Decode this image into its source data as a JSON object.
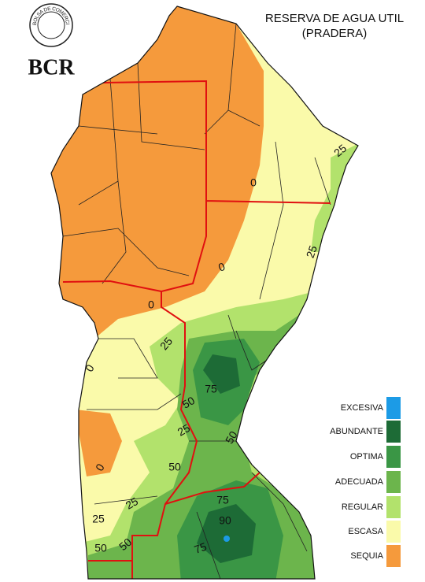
{
  "logo": {
    "ring_text": "BOLSA DE COMERCIO DE ROSARIO",
    "initials": "BCR"
  },
  "title": [
    "RESERVA DE AGUA UTIL",
    "(PRADERA)"
  ],
  "legend": [
    {
      "label": "EXCESIVA",
      "color": "#1c9be6"
    },
    {
      "label": "ABUNDANTE",
      "color": "#1d6b36"
    },
    {
      "label": "OPTIMA",
      "color": "#3a9645"
    },
    {
      "label": "ADECUADA",
      "color": "#6cb54c"
    },
    {
      "label": "REGULAR",
      "color": "#b2e26c"
    },
    {
      "label": "ESCASA",
      "color": "#fafaaa"
    },
    {
      "label": "SEQUIA",
      "color": "#f59a3c"
    }
  ],
  "contour_labels": [
    "25",
    "0",
    "25",
    "0",
    "0",
    "25",
    "0",
    "75",
    "50",
    "25",
    "50",
    "0",
    "50",
    "25",
    "75",
    "25",
    "90",
    "50",
    "50",
    "75"
  ]
}
